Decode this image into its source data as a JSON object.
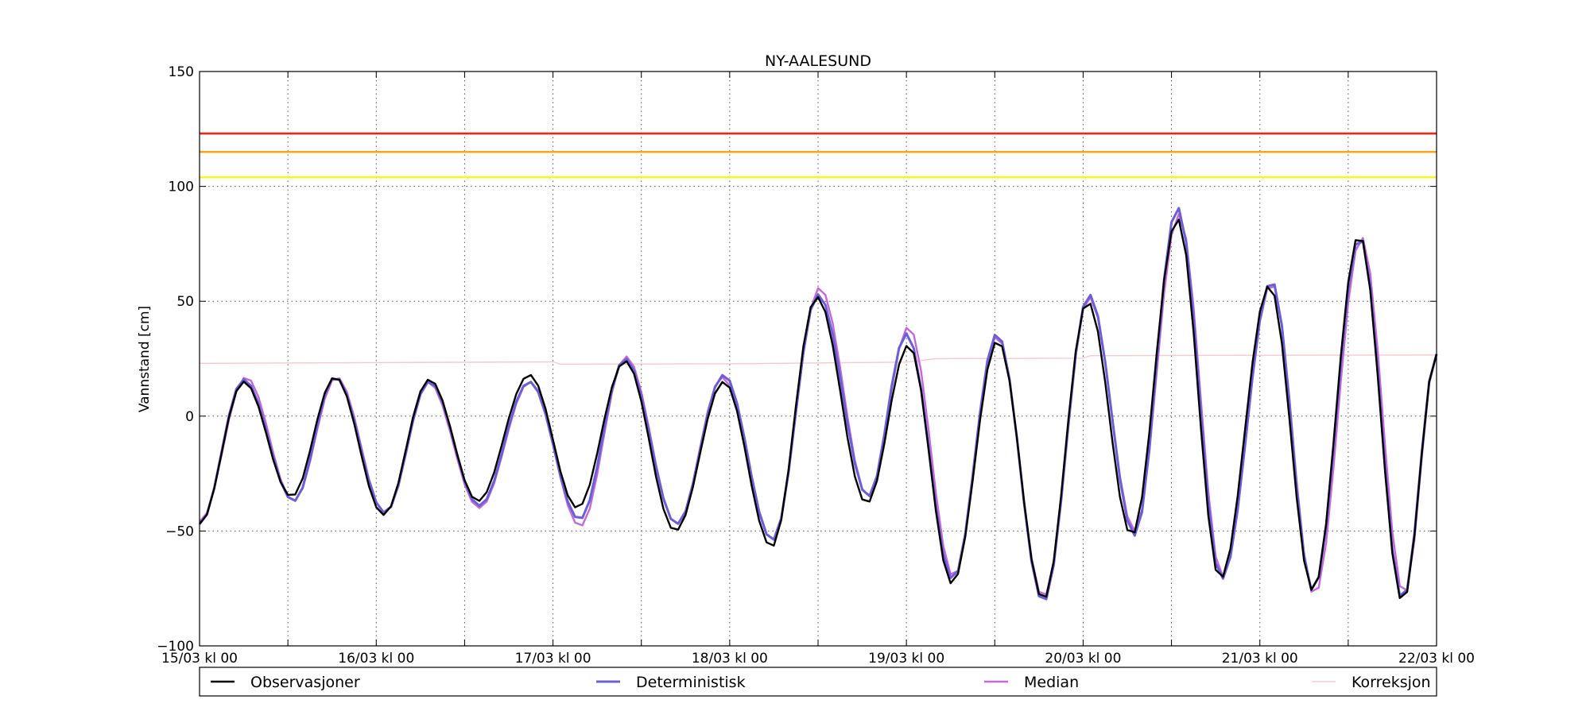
{
  "chart_data": {
    "type": "line",
    "title": "NY-AALESUND",
    "ylabel": "Vannstand [cm]",
    "xlabel": "",
    "ylim": [
      -100,
      150
    ],
    "yticks": [
      -100,
      -50,
      0,
      50,
      100,
      150
    ],
    "xlim": [
      0,
      168
    ],
    "xticks": [
      {
        "x": 0,
        "label": "15/03 kl 00"
      },
      {
        "x": 24,
        "label": "16/03 kl 00"
      },
      {
        "x": 48,
        "label": "17/03 kl 00"
      },
      {
        "x": 72,
        "label": "18/03 kl 00"
      },
      {
        "x": 96,
        "label": "19/03 kl 00"
      },
      {
        "x": 120,
        "label": "20/03 kl 00"
      },
      {
        "x": 144,
        "label": "21/03 kl 00"
      },
      {
        "x": 168,
        "label": "22/03 kl 00"
      }
    ],
    "minor_xticks": [
      12,
      36,
      60,
      84,
      108,
      132,
      156
    ],
    "grid": true,
    "legend_position": "below",
    "thresholds": [
      {
        "y": 123,
        "color": "#e8281a"
      },
      {
        "y": 115,
        "color": "#f5a623"
      },
      {
        "y": 104,
        "color": "#f5f52a"
      }
    ],
    "series": [
      {
        "name": "Observasjoner",
        "color": "#000000",
        "width": 2.4,
        "tides": [
          [
            0,
            -47
          ],
          [
            6,
            15
          ],
          [
            12.5,
            -35
          ],
          [
            18.4,
            17
          ],
          [
            25,
            -43
          ],
          [
            31.2,
            16
          ],
          [
            37.8,
            -37
          ],
          [
            44.8,
            18
          ],
          [
            51.3,
            -40
          ],
          [
            57.8,
            24
          ],
          [
            64.6,
            -50
          ],
          [
            71.2,
            15
          ],
          [
            77.7,
            -57
          ],
          [
            83.8,
            52
          ],
          [
            90.6,
            -38
          ],
          [
            96.3,
            31
          ],
          [
            102.2,
            -73
          ],
          [
            108.4,
            33
          ],
          [
            114.6,
            -80
          ],
          [
            120.6,
            50
          ],
          [
            126.6,
            -52
          ],
          [
            132.8,
            86
          ],
          [
            138.6,
            -71
          ],
          [
            145.3,
            57
          ],
          [
            151.2,
            -76
          ],
          [
            157.5,
            79
          ],
          [
            163.4,
            -81
          ],
          [
            168,
            27
          ]
        ]
      },
      {
        "name": "Deterministisk",
        "color": "#6b5fd6",
        "width": 3,
        "tides": [
          [
            0,
            -47
          ],
          [
            6,
            16
          ],
          [
            12.8,
            -37
          ],
          [
            18.4,
            17
          ],
          [
            25.2,
            -42
          ],
          [
            31.2,
            15
          ],
          [
            38,
            -39
          ],
          [
            44.8,
            15
          ],
          [
            51.6,
            -45
          ],
          [
            57.8,
            25
          ],
          [
            64.8,
            -47
          ],
          [
            71.2,
            18
          ],
          [
            77.8,
            -54
          ],
          [
            84,
            53
          ],
          [
            90.8,
            -35
          ],
          [
            96,
            36
          ],
          [
            102.3,
            -71
          ],
          [
            108.3,
            36
          ],
          [
            114.6,
            -81
          ],
          [
            120.8,
            53
          ],
          [
            127,
            -52
          ],
          [
            132.8,
            91
          ],
          [
            138.8,
            -71
          ],
          [
            145.6,
            59
          ],
          [
            151.2,
            -76
          ],
          [
            157.6,
            78
          ],
          [
            163.4,
            -80
          ],
          [
            168,
            27
          ]
        ]
      },
      {
        "name": "Median",
        "color": "#c26ad9",
        "width": 2.4,
        "tides": [
          [
            0,
            -46
          ],
          [
            6.3,
            17
          ],
          [
            12.8,
            -37
          ],
          [
            18.6,
            17
          ],
          [
            25.2,
            -42
          ],
          [
            31,
            15
          ],
          [
            38,
            -40
          ],
          [
            44.9,
            15
          ],
          [
            51.7,
            -48
          ],
          [
            57.9,
            26
          ],
          [
            64.8,
            -47
          ],
          [
            71,
            17
          ],
          [
            77.8,
            -54
          ],
          [
            84.2,
            56
          ],
          [
            90.8,
            -35
          ],
          [
            96.3,
            39
          ],
          [
            102.4,
            -70
          ],
          [
            108.3,
            35
          ],
          [
            114.6,
            -79
          ],
          [
            120.8,
            52
          ],
          [
            127,
            -50
          ],
          [
            133,
            88
          ],
          [
            138.9,
            -70
          ],
          [
            145.6,
            58
          ],
          [
            151.4,
            -78
          ],
          [
            157.8,
            78
          ],
          [
            163.6,
            -78
          ],
          [
            168,
            27
          ]
        ]
      },
      {
        "name": "Korreksjon",
        "color": "#f7c9cf",
        "width": 1.4,
        "points": [
          [
            0,
            23
          ],
          [
            24,
            23.3
          ],
          [
            48,
            23.6
          ],
          [
            49,
            22.6
          ],
          [
            72,
            22.8
          ],
          [
            96,
            23.5
          ],
          [
            100,
            25
          ],
          [
            120,
            25.2
          ],
          [
            121,
            26.3
          ],
          [
            144,
            26.5
          ],
          [
            168,
            26.6
          ]
        ]
      }
    ]
  }
}
